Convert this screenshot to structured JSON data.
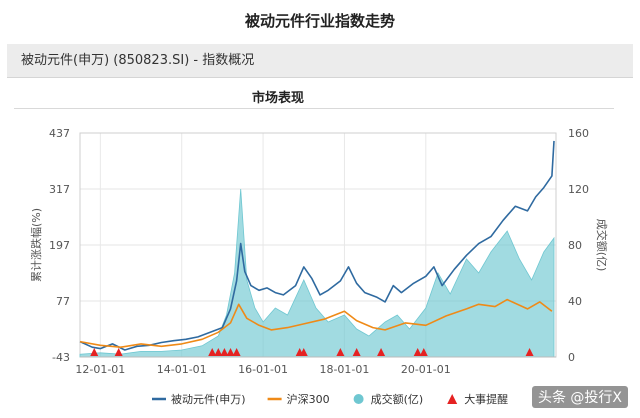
{
  "page": {
    "title": "被动元件行业指数走势",
    "info_bar": "被动元件(申万) (850823.SI) - 指数概况",
    "section_title": "市场表现",
    "watermark": "头条 @投行X"
  },
  "chart_data": {
    "type": "line",
    "title": "",
    "ylabel": "累计涨跌幅(%)",
    "y2label": "成交额(亿)",
    "ylim": [
      -43,
      437
    ],
    "y2lim": [
      0,
      160
    ],
    "yticks": [
      "437",
      "317",
      "197",
      "77",
      "-43"
    ],
    "y2ticks": [
      "160",
      "120",
      "80",
      "40",
      "0"
    ],
    "xlim": [
      2011.5,
      2023.2
    ],
    "xticks": [
      {
        "value": 2012,
        "label": "12-01-01"
      },
      {
        "value": 2014,
        "label": "14-01-01"
      },
      {
        "value": 2016,
        "label": "16-01-01"
      },
      {
        "value": 2018,
        "label": "18-01-01"
      },
      {
        "value": 2020,
        "label": "20-01-01"
      }
    ],
    "grid": true,
    "legend_position": "bottom",
    "series": [
      {
        "name": "被动元件(申万)",
        "kind": "line",
        "axis": "left",
        "color": "#2f6aa0",
        "x": [
          2011.5,
          2011.8,
          2012.0,
          2012.3,
          2012.6,
          2012.9,
          2013.2,
          2013.5,
          2013.8,
          2014.1,
          2014.4,
          2014.7,
          2015.0,
          2015.2,
          2015.35,
          2015.45,
          2015.55,
          2015.7,
          2015.9,
          2016.1,
          2016.3,
          2016.5,
          2016.8,
          2017.0,
          2017.2,
          2017.4,
          2017.6,
          2017.9,
          2018.1,
          2018.3,
          2018.5,
          2018.8,
          2019.0,
          2019.2,
          2019.4,
          2019.7,
          2020.0,
          2020.2,
          2020.4,
          2020.7,
          2021.0,
          2021.3,
          2021.6,
          2021.9,
          2022.2,
          2022.5,
          2022.7,
          2022.9,
          2023.1,
          2023.15
        ],
        "y": [
          -10,
          -22,
          -25,
          -15,
          -28,
          -20,
          -18,
          -12,
          -8,
          -5,
          0,
          10,
          20,
          60,
          120,
          200,
          140,
          110,
          100,
          105,
          95,
          90,
          110,
          150,
          125,
          90,
          100,
          120,
          150,
          115,
          95,
          85,
          75,
          110,
          95,
          115,
          130,
          150,
          110,
          145,
          175,
          200,
          215,
          250,
          280,
          270,
          300,
          320,
          345,
          420
        ]
      },
      {
        "name": "沪深300",
        "kind": "line",
        "axis": "left",
        "color": "#ef8a17",
        "x": [
          2011.5,
          2012.0,
          2012.5,
          2013.0,
          2013.5,
          2014.0,
          2014.5,
          2014.9,
          2015.2,
          2015.4,
          2015.6,
          2015.9,
          2016.2,
          2016.6,
          2017.0,
          2017.5,
          2018.0,
          2018.3,
          2018.7,
          2019.0,
          2019.5,
          2020.0,
          2020.5,
          2021.0,
          2021.3,
          2021.7,
          2022.0,
          2022.5,
          2022.8,
          2023.1
        ],
        "y": [
          -10,
          -18,
          -22,
          -15,
          -20,
          -15,
          -5,
          10,
          30,
          70,
          40,
          25,
          15,
          20,
          28,
          38,
          55,
          35,
          20,
          15,
          30,
          25,
          45,
          60,
          70,
          65,
          80,
          60,
          75,
          55
        ]
      },
      {
        "name": "成交额(亿)",
        "kind": "area",
        "axis": "right",
        "color": "#6fc7d1",
        "x": [
          2011.5,
          2012.0,
          2012.5,
          2013.0,
          2013.5,
          2014.0,
          2014.5,
          2014.9,
          2015.1,
          2015.3,
          2015.45,
          2015.6,
          2015.8,
          2016.0,
          2016.3,
          2016.6,
          2017.0,
          2017.3,
          2017.6,
          2018.0,
          2018.3,
          2018.6,
          2019.0,
          2019.3,
          2019.6,
          2020.0,
          2020.3,
          2020.6,
          2021.0,
          2021.3,
          2021.6,
          2022.0,
          2022.3,
          2022.6,
          2022.9,
          2023.15
        ],
        "y": [
          2,
          3,
          2,
          4,
          4,
          5,
          8,
          15,
          30,
          60,
          120,
          55,
          35,
          25,
          35,
          30,
          55,
          35,
          25,
          30,
          20,
          15,
          25,
          30,
          20,
          35,
          60,
          45,
          70,
          60,
          75,
          90,
          70,
          55,
          75,
          85
        ]
      },
      {
        "name": "大事提醒",
        "kind": "event",
        "color": "#e52222",
        "x": [
          2011.85,
          2012.45,
          2014.75,
          2014.9,
          2015.05,
          2015.2,
          2015.35,
          2016.9,
          2017.0,
          2017.9,
          2018.3,
          2018.9,
          2019.8,
          2019.95,
          2022.55
        ]
      }
    ]
  }
}
